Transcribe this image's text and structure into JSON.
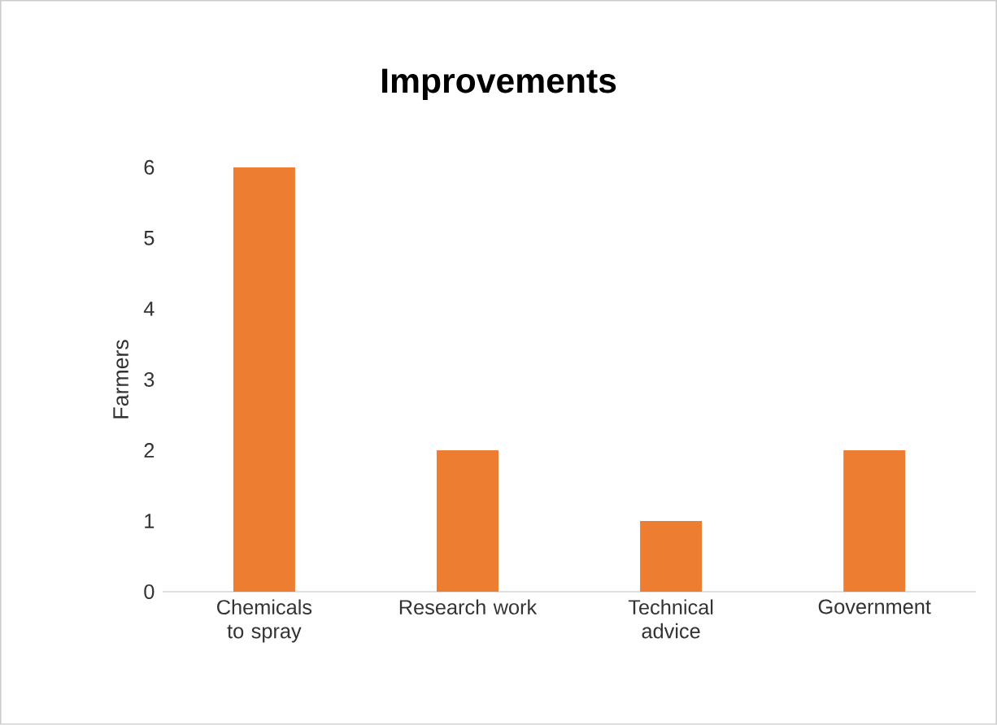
{
  "chart_data": {
    "type": "bar",
    "title": "Improvements",
    "ylabel": "Farmers",
    "categories": [
      "Chemicals to spray",
      "Research work",
      "Technical advice",
      "Government"
    ],
    "values": [
      6,
      2,
      1,
      2
    ],
    "color": "#ed7d31",
    "ylim": [
      0,
      6
    ],
    "yticks": [
      0,
      1,
      2,
      3,
      4,
      5,
      6
    ]
  }
}
